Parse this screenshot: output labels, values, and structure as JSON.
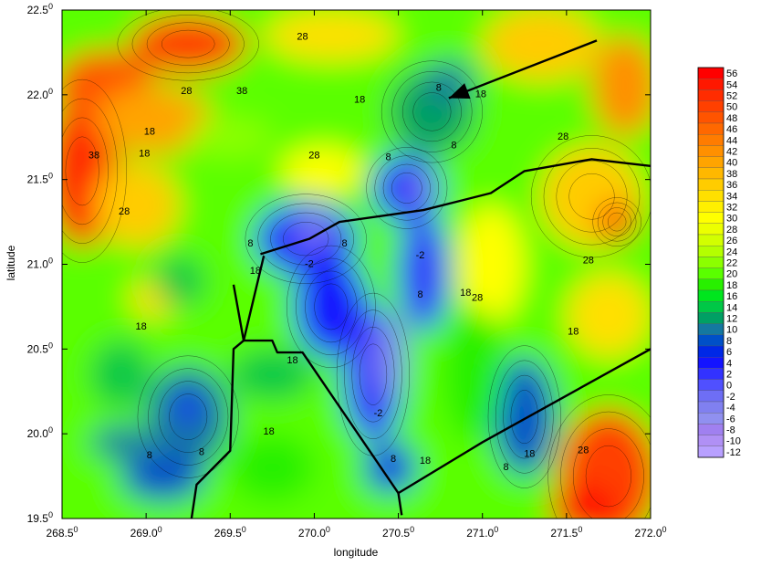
{
  "chart_data": {
    "type": "heatmap",
    "title": "",
    "xlabel": "longitude",
    "ylabel": "latitude",
    "xlim": [
      268.5,
      272.0
    ],
    "ylim": [
      19.5,
      22.5
    ],
    "x_ticks": [
      {
        "value": 268.5,
        "main": "268.5",
        "sup": "0"
      },
      {
        "value": 269.0,
        "main": "269.0",
        "sup": "0"
      },
      {
        "value": 269.5,
        "main": "269.5",
        "sup": "0"
      },
      {
        "value": 270.0,
        "main": "270.0",
        "sup": "0"
      },
      {
        "value": 270.5,
        "main": "270.5",
        "sup": "0"
      },
      {
        "value": 271.0,
        "main": "271.0",
        "sup": "0"
      },
      {
        "value": 271.5,
        "main": "271.5",
        "sup": "0"
      },
      {
        "value": 272.0,
        "main": "272.0",
        "sup": "0"
      }
    ],
    "y_ticks": [
      {
        "value": 19.5,
        "main": "19.5",
        "sup": "0"
      },
      {
        "value": 20.0,
        "main": "20.0",
        "sup": "0"
      },
      {
        "value": 20.5,
        "main": "20.5",
        "sup": "0"
      },
      {
        "value": 21.0,
        "main": "21.0",
        "sup": "0"
      },
      {
        "value": 21.5,
        "main": "21.5",
        "sup": "0"
      },
      {
        "value": 22.0,
        "main": "22.0",
        "sup": "0"
      },
      {
        "value": 22.5,
        "main": "22.5",
        "sup": "0"
      }
    ],
    "colorbar": {
      "levels": [
        "56",
        "54",
        "52",
        "50",
        "48",
        "46",
        "44",
        "42",
        "40",
        "38",
        "36",
        "34",
        "32",
        "30",
        "28",
        "26",
        "24",
        "22",
        "20",
        "18",
        "16",
        "14",
        "12",
        "10",
        "8",
        "6",
        "4",
        "2",
        "0",
        "-2",
        "-4",
        "-6",
        "-8",
        "-10",
        "-12"
      ],
      "colors": [
        "#ff0000",
        "#ff1800",
        "#ff2c00",
        "#ff4000",
        "#ff5400",
        "#ff6800",
        "#ff7c00",
        "#ff9000",
        "#ffa400",
        "#ffb800",
        "#ffcc00",
        "#ffe000",
        "#fff000",
        "#ffff00",
        "#ecff00",
        "#d2ff00",
        "#b4ff00",
        "#8cff00",
        "#5aff00",
        "#28f000",
        "#00e61e",
        "#00c846",
        "#00a064",
        "#1478a0",
        "#0050c8",
        "#0028e6",
        "#1414ff",
        "#3232ff",
        "#5050ff",
        "#6e6ef5",
        "#8080f0",
        "#9090f0",
        "#a080f0",
        "#b090f5",
        "#b8a0ff"
      ]
    },
    "contour_labels": [
      {
        "text": "28",
        "x": 269.24,
        "y": 22.02
      },
      {
        "text": "38",
        "x": 269.57,
        "y": 22.02
      },
      {
        "text": "28",
        "x": 269.93,
        "y": 22.34
      },
      {
        "text": "18",
        "x": 270.27,
        "y": 21.97
      },
      {
        "text": "8",
        "x": 270.74,
        "y": 22.04
      },
      {
        "text": "18",
        "x": 270.99,
        "y": 22.0
      },
      {
        "text": "18",
        "x": 269.02,
        "y": 21.78
      },
      {
        "text": "18",
        "x": 268.99,
        "y": 21.65
      },
      {
        "text": "38",
        "x": 268.69,
        "y": 21.64
      },
      {
        "text": "28",
        "x": 270.0,
        "y": 21.64
      },
      {
        "text": "8",
        "x": 270.83,
        "y": 21.7
      },
      {
        "text": "8",
        "x": 270.44,
        "y": 21.63
      },
      {
        "text": "28",
        "x": 271.48,
        "y": 21.75
      },
      {
        "text": "28",
        "x": 268.87,
        "y": 21.31
      },
      {
        "text": "8",
        "x": 269.62,
        "y": 21.12
      },
      {
        "text": "8",
        "x": 270.18,
        "y": 21.12
      },
      {
        "text": "-2",
        "x": 269.97,
        "y": 21.0
      },
      {
        "text": "-2",
        "x": 270.63,
        "y": 21.05
      },
      {
        "text": "18",
        "x": 269.65,
        "y": 20.96
      },
      {
        "text": "28",
        "x": 271.63,
        "y": 21.02
      },
      {
        "text": "8",
        "x": 270.63,
        "y": 20.82
      },
      {
        "text": "18",
        "x": 270.9,
        "y": 20.83
      },
      {
        "text": "28",
        "x": 270.97,
        "y": 20.8
      },
      {
        "text": "18",
        "x": 268.97,
        "y": 20.63
      },
      {
        "text": "18",
        "x": 271.54,
        "y": 20.6
      },
      {
        "text": "18",
        "x": 269.87,
        "y": 20.43
      },
      {
        "text": "-2",
        "x": 270.38,
        "y": 20.12
      },
      {
        "text": "18",
        "x": 269.73,
        "y": 20.01
      },
      {
        "text": "8",
        "x": 269.33,
        "y": 19.89
      },
      {
        "text": "8",
        "x": 269.02,
        "y": 19.87
      },
      {
        "text": "8",
        "x": 270.47,
        "y": 19.85
      },
      {
        "text": "18",
        "x": 270.66,
        "y": 19.84
      },
      {
        "text": "8",
        "x": 271.14,
        "y": 19.8
      },
      {
        "text": "18",
        "x": 271.28,
        "y": 19.88
      },
      {
        "text": "28",
        "x": 271.6,
        "y": 19.9
      }
    ],
    "track_lines": [
      [
        [
          269.52,
          20.88
        ],
        [
          269.58,
          20.55
        ],
        [
          269.75,
          20.55
        ],
        [
          269.78,
          20.48
        ],
        [
          269.93,
          20.48
        ],
        [
          270.5,
          19.65
        ]
      ],
      [
        [
          269.68,
          21.06
        ],
        [
          269.97,
          21.15
        ],
        [
          270.15,
          21.25
        ],
        [
          270.65,
          21.32
        ],
        [
          271.05,
          21.42
        ],
        [
          271.25,
          21.55
        ],
        [
          271.65,
          21.62
        ],
        [
          272.0,
          21.58
        ]
      ],
      [
        [
          270.5,
          19.65
        ],
        [
          270.52,
          19.52
        ]
      ],
      [
        [
          270.5,
          19.65
        ],
        [
          271.0,
          19.95
        ],
        [
          272.0,
          20.5
        ]
      ],
      [
        [
          269.7,
          21.05
        ],
        [
          269.58,
          20.55
        ],
        [
          269.52,
          20.5
        ],
        [
          269.5,
          19.9
        ],
        [
          269.3,
          19.7
        ],
        [
          269.27,
          19.5
        ]
      ]
    ],
    "arrow": {
      "from": [
        271.68,
        22.32
      ],
      "to": [
        270.8,
        21.98
      ]
    }
  }
}
